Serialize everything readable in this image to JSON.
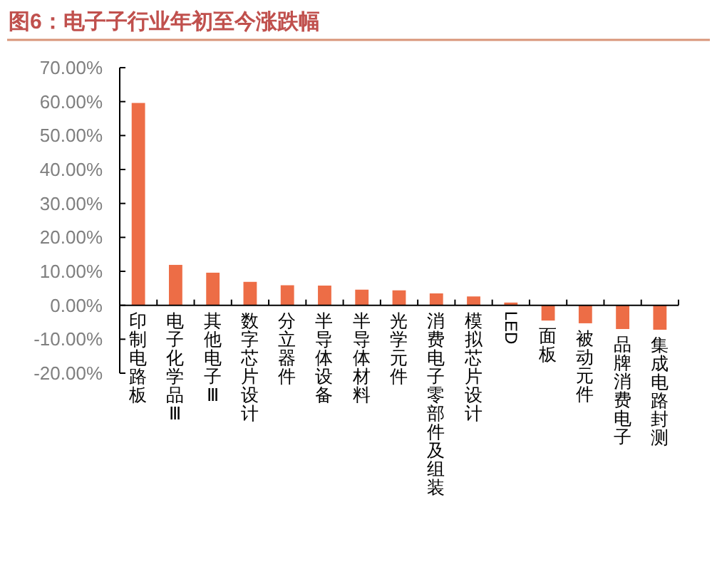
{
  "chart_data": {
    "type": "bar",
    "title": "图6：电子子行业年初至今涨跌幅",
    "categories": [
      "印制电路板",
      "电子化学品Ⅲ",
      "其他电子Ⅲ",
      "数字芯片设计",
      "分立器件",
      "半导体设备",
      "半导体材料",
      "光学元件",
      "消费电子零部件及组装",
      "模拟芯片设计",
      "LED",
      "面板",
      "被动元件",
      "品牌消费电子",
      "集成电路封测"
    ],
    "values": [
      59.6,
      11.9,
      9.6,
      6.9,
      5.9,
      5.8,
      4.6,
      4.4,
      3.5,
      2.6,
      0.8,
      -4.5,
      -5.3,
      -7,
      -7.2
    ],
    "color": "#ed6d46",
    "ylim": [
      -20,
      70
    ],
    "yticks": [
      {
        "value": -20,
        "label": "-20.00%"
      },
      {
        "value": -10,
        "label": "-10.00%"
      },
      {
        "value": 0,
        "label": "0.00%"
      },
      {
        "value": 10,
        "label": "10.00%"
      },
      {
        "value": 20,
        "label": "20.00%"
      },
      {
        "value": 30,
        "label": "30.00%"
      },
      {
        "value": 40,
        "label": "40.00%"
      },
      {
        "value": 50,
        "label": "50.00%"
      },
      {
        "value": 60,
        "label": "60.00%"
      },
      {
        "value": 70,
        "label": "70.00%"
      }
    ],
    "grid": false
  }
}
